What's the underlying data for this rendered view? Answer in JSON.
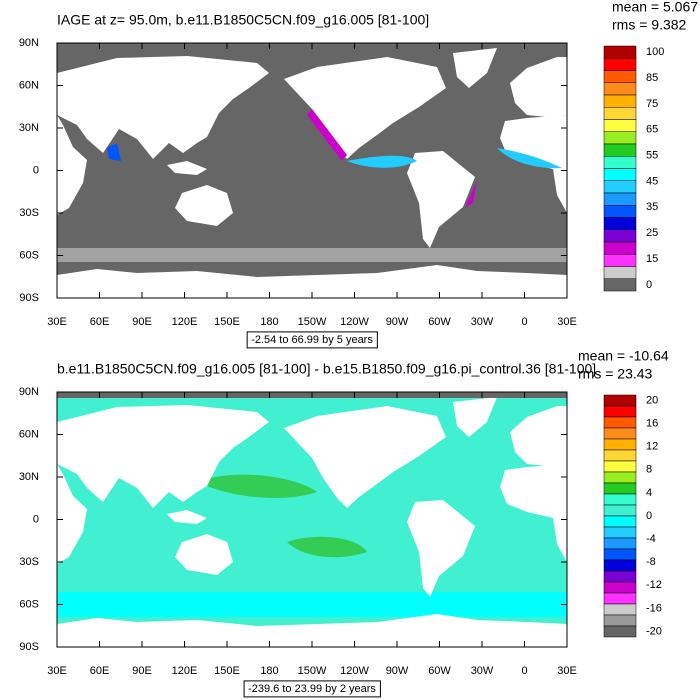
{
  "panels": [
    {
      "title": "IAGE at z=  95.0m, b.e11.B1850C5CN.f09_g16.005 [81-100]",
      "mean": "mean = 5.067",
      "rms": "rms = 9.382",
      "caption": "-2.54 to 66.99 by 5 years",
      "colorbar": {
        "labels": [
          "100",
          "85",
          "75",
          "65",
          "55",
          "45",
          "35",
          "25",
          "15",
          "0"
        ],
        "colors": [
          "#b00000",
          "#ff0000",
          "#ff5a00",
          "#ff8c1a",
          "#ffb000",
          "#ffd633",
          "#ffff40",
          "#99ee22",
          "#22cc22",
          "#33ffcc",
          "#00ffff",
          "#22ccff",
          "#1a99ff",
          "#0055ff",
          "#0000dd",
          "#7a00d6",
          "#cc00cc",
          "#ff33ff",
          "#cccccc",
          "#666666"
        ]
      }
    },
    {
      "title": "b.e11.B1850C5CN.f09_g16.005 [81-100] - b.e15.B1850.f09_g16.pi_control.36 [81-100]",
      "mean": "mean = -10.64",
      "rms": "rms = 23.43",
      "caption": "-239.6 to 23.99 by 2 years",
      "colorbar": {
        "labels": [
          "20",
          "16",
          "12",
          "8",
          "4",
          "0",
          "-4",
          "-8",
          "-12",
          "-16",
          "-20"
        ],
        "colors": [
          "#b00000",
          "#ff0000",
          "#ff5a00",
          "#ff8c1a",
          "#ffb000",
          "#ffd633",
          "#ffff40",
          "#99ee22",
          "#22cc22",
          "#33ffcc",
          "#40f0d0",
          "#00ffff",
          "#22ccff",
          "#1a99ff",
          "#0055ff",
          "#0000dd",
          "#7a00d6",
          "#cc00cc",
          "#ff33ff",
          "#cccccc",
          "#999999",
          "#666666"
        ]
      }
    }
  ],
  "axes": {
    "x_labels": [
      "30E",
      "60E",
      "90E",
      "120E",
      "150E",
      "180",
      "150W",
      "120W",
      "90W",
      "60W",
      "30W",
      "0",
      "30E"
    ],
    "y_labels": [
      "90N",
      "60N",
      "30N",
      "0",
      "30S",
      "60S",
      "90S"
    ]
  }
}
